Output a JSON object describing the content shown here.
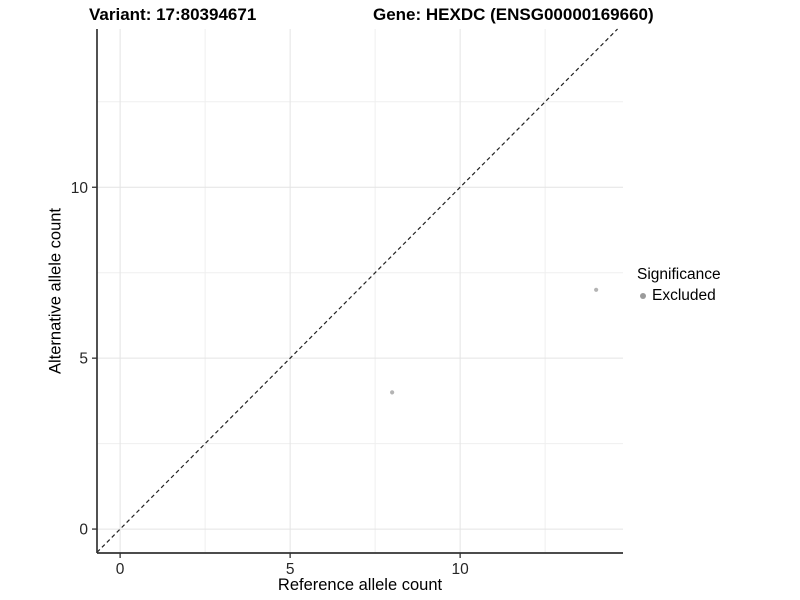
{
  "header": {
    "left_title": "Variant: 17:80394671",
    "right_title": "Gene: HEXDC (ENSG00000169660)"
  },
  "axes": {
    "x_label": "Reference allele count",
    "y_label": "Alternative allele count"
  },
  "legend": {
    "title": "Significance",
    "items": [
      {
        "label": "Excluded",
        "color": "#9b9b9b"
      }
    ]
  },
  "chart_data": {
    "type": "scatter",
    "title_left": "Variant: 17:80394671",
    "title_right": "Gene: HEXDC (ENSG00000169660)",
    "xlabel": "Reference allele count",
    "ylabel": "Alternative allele count",
    "xlim": [
      -0.68,
      14.79
    ],
    "ylim": [
      -0.7,
      14.63
    ],
    "x_ticks": [
      0,
      5,
      10
    ],
    "y_ticks": [
      0,
      5,
      10
    ],
    "x_minor_ticks": [
      2.5,
      7.5,
      12.5
    ],
    "y_minor_ticks": [
      2.5,
      7.5,
      12.5
    ],
    "grid": true,
    "legend_position": "right",
    "series": [
      {
        "name": "Excluded",
        "color": "#b4b4b4",
        "points": [
          [
            8,
            4
          ],
          [
            14,
            7
          ]
        ]
      }
    ],
    "identity_line": {
      "equation": "y = x",
      "style": "dashed"
    }
  },
  "colors": {
    "point": "#b4b4b4",
    "legend_key": "#9b9b9b",
    "grid_major": "#e4e4e4",
    "grid_minor": "#efefef",
    "axis_line": "#333333",
    "dashed_line": "#222222",
    "tick_text": "#262626"
  }
}
